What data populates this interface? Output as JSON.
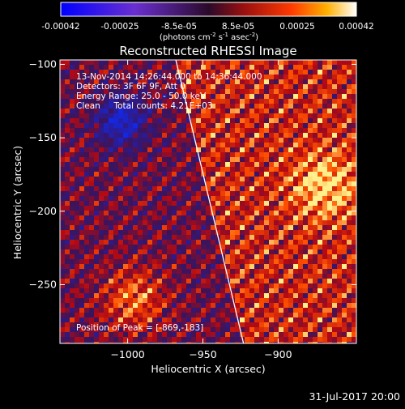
{
  "chart_data": {
    "type": "heatmap",
    "title": "Reconstructed RHESSI Image",
    "xlabel": "Heliocentric X (arcsec)",
    "ylabel": "Heliocentric Y (arcsec)",
    "xlim": [
      -1045,
      -848
    ],
    "ylim": [
      -290,
      -97
    ],
    "x_ticks": [
      -1000,
      -950,
      -900
    ],
    "y_ticks": [
      -100,
      -150,
      -200,
      -250
    ],
    "colorbar": {
      "min": -0.00042,
      "max": 0.00042,
      "tick_labels": [
        "-0.00042",
        "-0.00025",
        "-8.5e-05",
        "8.5e-05",
        "0.00025",
        "0.00042"
      ],
      "label_main": "(photons cm",
      "label_sup1": "-2",
      "label_mid1": " s",
      "label_sup2": "-1",
      "label_mid2": " asec",
      "label_sup3": "-2",
      "label_end": ")"
    },
    "info_lines": [
      "13-Nov-2014 14:26:44.000 to 14:36:44.000",
      "Detectors: 3F 6F 9F, Att 0",
      "Energy Range: 25.0 - 50.0 keV",
      "Clean     Total counts: 4.21E+03"
    ],
    "peak_label": "Position of Peak = [-869,-183]",
    "peak": [
      -869,
      -183
    ],
    "limb_line": [
      [
        -968,
        -97
      ],
      [
        -923,
        -290
      ]
    ],
    "colors": {
      "negative": "#2850e6",
      "positive": "#ffdc50",
      "limb": "#ffffff"
    }
  },
  "footer": {
    "date": "31-Jul-2017 20:00"
  }
}
